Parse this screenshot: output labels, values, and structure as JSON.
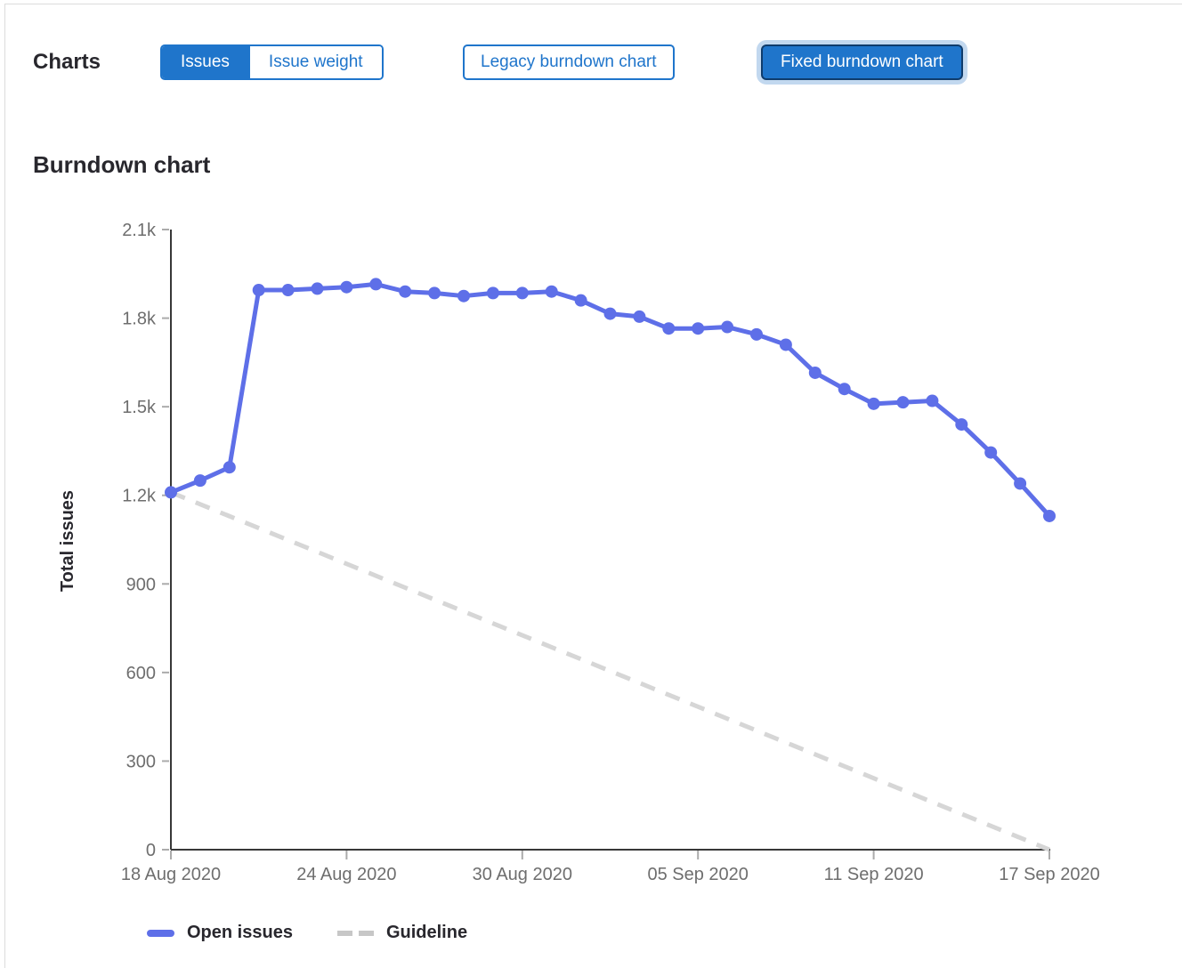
{
  "header": {
    "charts_label": "Charts",
    "issue_toggle": [
      {
        "label": "Issues",
        "selected": true
      },
      {
        "label": "Issue weight",
        "selected": false
      }
    ],
    "chart_version_toggle": [
      {
        "label": "Legacy burndown chart",
        "selected": false
      },
      {
        "label": "Fixed burndown chart",
        "selected": true,
        "focused": true
      }
    ]
  },
  "section_title": "Burndown chart",
  "chart_data": {
    "type": "line",
    "title": "Burndown chart",
    "xlabel": "",
    "ylabel": "Total issues",
    "x": [
      "18 Aug 2020",
      "19 Aug 2020",
      "20 Aug 2020",
      "21 Aug 2020",
      "22 Aug 2020",
      "23 Aug 2020",
      "24 Aug 2020",
      "25 Aug 2020",
      "26 Aug 2020",
      "27 Aug 2020",
      "28 Aug 2020",
      "29 Aug 2020",
      "30 Aug 2020",
      "31 Aug 2020",
      "01 Sep 2020",
      "02 Sep 2020",
      "03 Sep 2020",
      "04 Sep 2020",
      "05 Sep 2020",
      "06 Sep 2020",
      "07 Sep 2020",
      "08 Sep 2020",
      "09 Sep 2020",
      "10 Sep 2020",
      "11 Sep 2020",
      "12 Sep 2020",
      "13 Sep 2020",
      "14 Sep 2020",
      "15 Sep 2020",
      "16 Sep 2020",
      "17 Sep 2020"
    ],
    "series": [
      {
        "name": "Open issues",
        "style": "solid",
        "values": [
          1210,
          1250,
          1295,
          1895,
          1895,
          1900,
          1905,
          1915,
          1890,
          1885,
          1875,
          1885,
          1885,
          1890,
          1860,
          1815,
          1805,
          1765,
          1765,
          1770,
          1745,
          1710,
          1615,
          1560,
          1510,
          1515,
          1520,
          1440,
          1345,
          1240,
          1130
        ]
      },
      {
        "name": "Guideline",
        "style": "dashed",
        "x_indices": [
          0,
          30
        ],
        "values": [
          1210,
          0
        ]
      }
    ],
    "ylim": [
      0,
      2100
    ],
    "yticks": {
      "values": [
        0,
        300,
        600,
        900,
        1200,
        1500,
        1800,
        2100
      ],
      "labels": [
        "0",
        "300",
        "600",
        "900",
        "1.2k",
        "1.5k",
        "1.8k",
        "2.1k"
      ]
    },
    "xticks": {
      "indices": [
        0,
        6,
        12,
        18,
        24,
        30
      ],
      "labels": [
        "18 Aug 2020",
        "24 Aug 2020",
        "30 Aug 2020",
        "05 Sep 2020",
        "11 Sep 2020",
        "17 Sep 2020"
      ]
    },
    "grid": false,
    "legend_position": "bottom"
  },
  "colors": {
    "accent_blue": "#1f75cb",
    "selected_border": "#0f3c6c",
    "focus_ring": "#c2d8ef",
    "line_blue": "#5e6fe8",
    "guideline_gray": "#d6d6d6",
    "legend_dash_gray": "#c7c7c7",
    "axis": "#383838",
    "tick": "#ababab",
    "tick_label": "#6e6e6e",
    "text_dark": "#28272d",
    "panel_border": "#dcdcdc"
  }
}
